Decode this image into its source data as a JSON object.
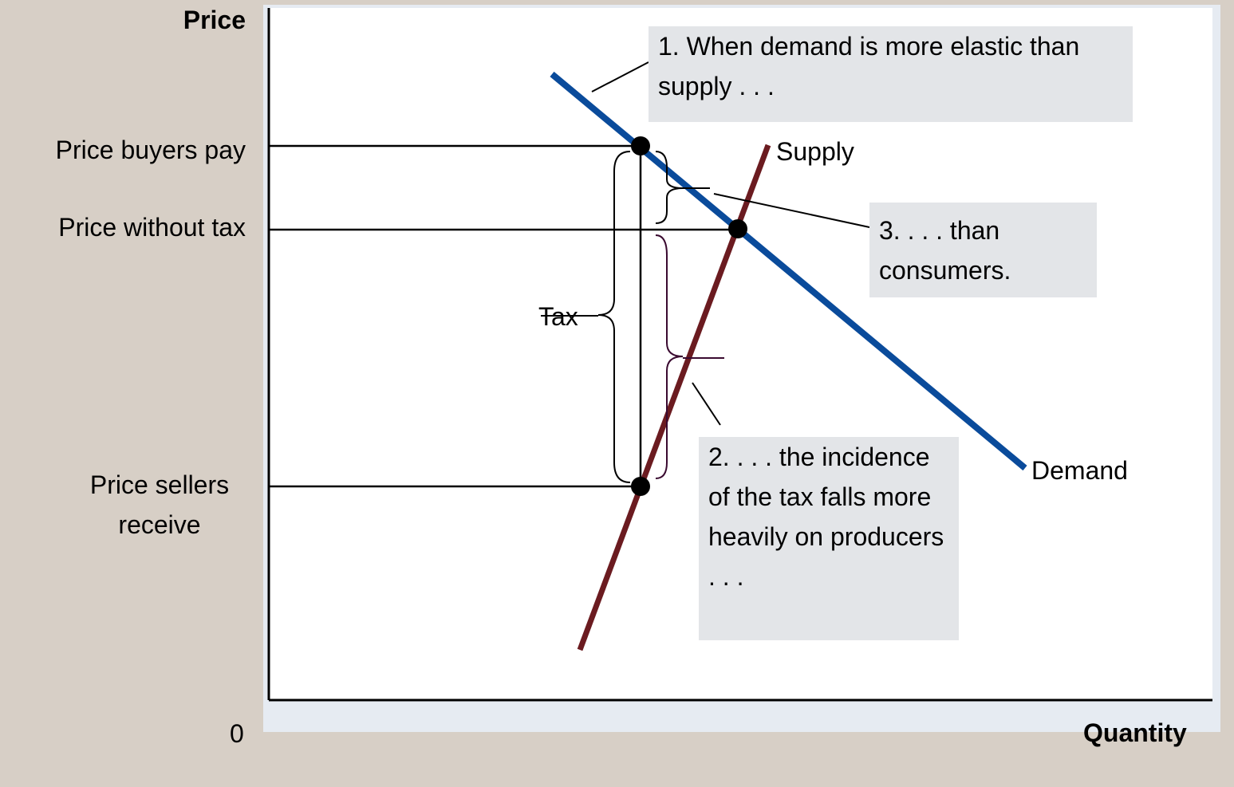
{
  "axes": {
    "y_label": "Price",
    "x_label": "Quantity",
    "origin": "0"
  },
  "price_labels": {
    "buyers": "Price buyers pay",
    "without_tax": "Price without tax",
    "sellers": "Price sellers receive"
  },
  "curves": {
    "supply": "Supply",
    "demand": "Demand"
  },
  "tax_label": "Tax",
  "notes": [
    "1. When demand is more elastic than supply . . .",
    "2. . . . the incidence of the tax falls more heavily on producers . . .",
    "3. . . . than consumers."
  ]
}
